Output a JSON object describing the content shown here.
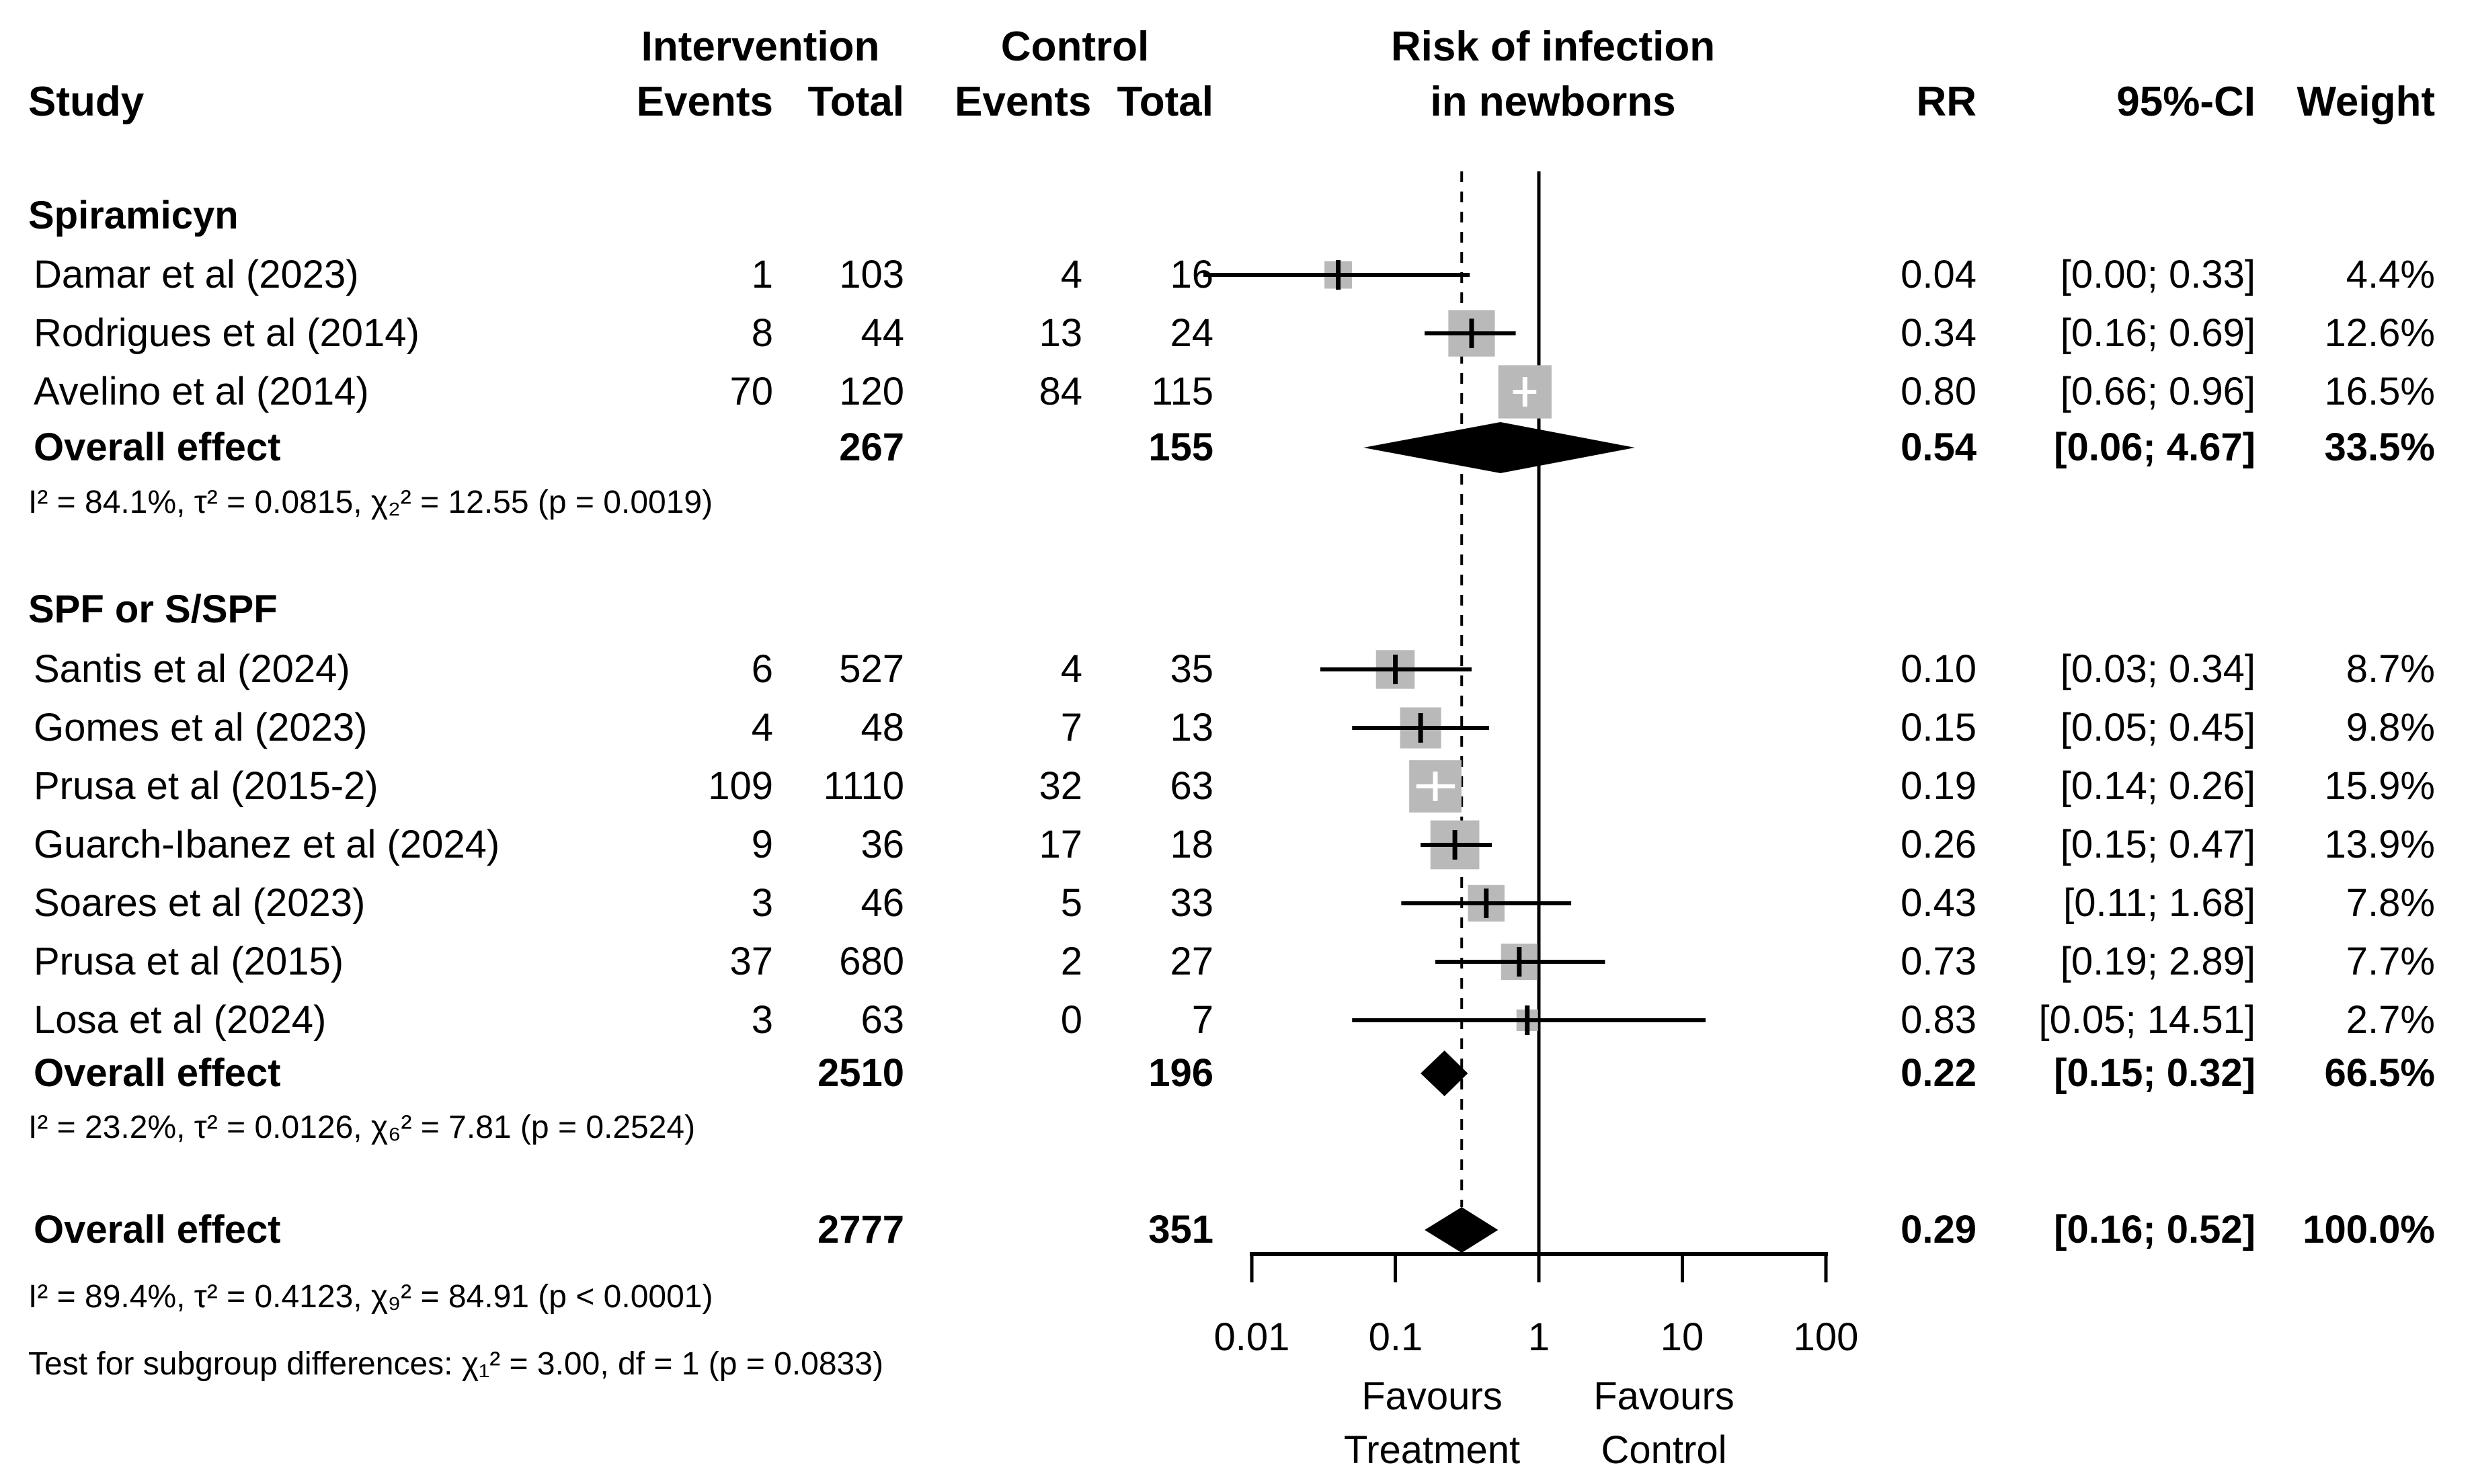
{
  "header": {
    "study": "Study",
    "intervention": "Intervention",
    "control": "Control",
    "events_int": "Events",
    "total_int": "Total",
    "events_ctl": "Events",
    "total_ctl": "Total",
    "plot_title_line1": "Risk of infection",
    "plot_title_line2": "in newborns",
    "rr": "RR",
    "ci": "95%-CI",
    "weight": "Weight"
  },
  "groups": [
    {
      "name": "Spiramicyn",
      "rows": [
        {
          "study": "Damar et al (2023)",
          "ev": "1",
          "tot": "103",
          "cev": "4",
          "ctot": "16",
          "rr": "0.04",
          "ci": "[0.00; 0.33]",
          "wt": "4.4%"
        },
        {
          "study": "Rodrigues et al (2014)",
          "ev": "8",
          "tot": "44",
          "cev": "13",
          "ctot": "24",
          "rr": "0.34",
          "ci": "[0.16; 0.69]",
          "wt": "12.6%"
        },
        {
          "study": "Avelino et al (2014)",
          "ev": "70",
          "tot": "120",
          "cev": "84",
          "ctot": "115",
          "rr": "0.80",
          "ci": "[0.66; 0.96]",
          "wt": "16.5%"
        }
      ],
      "overall": {
        "label": "Overall effect",
        "total": "267",
        "control_total": "155",
        "rr": "0.54",
        "ci": "[0.06; 4.67]",
        "wt": "33.5%"
      },
      "heterogeneity": "I² = 84.1%, τ² = 0.0815, χ₂² = 12.55 (p = 0.0019)"
    },
    {
      "name": "SPF or S/SPF",
      "rows": [
        {
          "study": "Santis et al (2024)",
          "ev": "6",
          "tot": "527",
          "cev": "4",
          "ctot": "35",
          "rr": "0.10",
          "ci": "[0.03; 0.34]",
          "wt": "8.7%"
        },
        {
          "study": "Gomes et al (2023)",
          "ev": "4",
          "tot": "48",
          "cev": "7",
          "ctot": "13",
          "rr": "0.15",
          "ci": "[0.05; 0.45]",
          "wt": "9.8%"
        },
        {
          "study": "Prusa et al (2015-2)",
          "ev": "109",
          "tot": "1110",
          "cev": "32",
          "ctot": "63",
          "rr": "0.19",
          "ci": "[0.14; 0.26]",
          "wt": "15.9%"
        },
        {
          "study": "Guarch-Ibanez et al (2024)",
          "ev": "9",
          "tot": "36",
          "cev": "17",
          "ctot": "18",
          "rr": "0.26",
          "ci": "[0.15; 0.47]",
          "wt": "13.9%"
        },
        {
          "study": "Soares et al (2023)",
          "ev": "3",
          "tot": "46",
          "cev": "5",
          "ctot": "33",
          "rr": "0.43",
          "ci": "[0.11; 1.68]",
          "wt": "7.8%"
        },
        {
          "study": "Prusa et al (2015)",
          "ev": "37",
          "tot": "680",
          "cev": "2",
          "ctot": "27",
          "rr": "0.73",
          "ci": "[0.19; 2.89]",
          "wt": "7.7%"
        },
        {
          "study": "Losa et al (2024)",
          "ev": "3",
          "tot": "63",
          "cev": "0",
          "ctot": "7",
          "rr": "0.83",
          "ci": "[0.05; 14.51]",
          "wt": "2.7%"
        }
      ],
      "overall": {
        "label": "Overall effect",
        "total": "2510",
        "control_total": "196",
        "rr": "0.22",
        "ci": "[0.15; 0.32]",
        "wt": "66.5%"
      },
      "heterogeneity": "I² = 23.2%, τ² = 0.0126, χ₆² = 7.81 (p = 0.2524)"
    }
  ],
  "grand": {
    "label": "Overall effect",
    "total": "2777",
    "control_total": "351",
    "rr": "0.29",
    "ci": "[0.16; 0.52]",
    "wt": "100.0%",
    "heterogeneity": "I² = 89.4%, τ² = 0.4123, χ₉² = 84.91 (p < 0.0001)",
    "subgroup_test": "Test for subgroup differences: χ₁² = 3.00, df = 1 (p = 0.0833)"
  },
  "axis": {
    "ticks": [
      "0.01",
      "0.1",
      "1",
      "10",
      "100"
    ],
    "favours_treatment_1": "Favours",
    "favours_treatment_2": "Treatment",
    "favours_control_1": "Favours",
    "favours_control_2": "Control"
  },
  "chart_data": {
    "type": "forest",
    "title": "Risk of infection in newborns",
    "effect_measure": "RR",
    "x_scale": "log10",
    "x_ticks": [
      0.01,
      0.1,
      1,
      10,
      100
    ],
    "xlim": [
      0.01,
      100
    ],
    "ref_line": 1.0,
    "pooled_line": 0.29,
    "favours": [
      "Favours Treatment",
      "Favours Control"
    ],
    "studies": [
      {
        "name": "Damar et al (2023)",
        "group": "Spiramicyn",
        "events": 1,
        "total": 103,
        "control_events": 4,
        "control_total": 16,
        "rr": 0.04,
        "ci_low": 0.0,
        "ci_high": 0.33,
        "weight_pct": 4.4
      },
      {
        "name": "Rodrigues et al (2014)",
        "group": "Spiramicyn",
        "events": 8,
        "total": 44,
        "control_events": 13,
        "control_total": 24,
        "rr": 0.34,
        "ci_low": 0.16,
        "ci_high": 0.69,
        "weight_pct": 12.6
      },
      {
        "name": "Avelino et al (2014)",
        "group": "Spiramicyn",
        "events": 70,
        "total": 120,
        "control_events": 84,
        "control_total": 115,
        "rr": 0.8,
        "ci_low": 0.66,
        "ci_high": 0.96,
        "weight_pct": 16.5
      },
      {
        "name": "Santis et al (2024)",
        "group": "SPF or S/SPF",
        "events": 6,
        "total": 527,
        "control_events": 4,
        "control_total": 35,
        "rr": 0.1,
        "ci_low": 0.03,
        "ci_high": 0.34,
        "weight_pct": 8.7
      },
      {
        "name": "Gomes et al (2023)",
        "group": "SPF or S/SPF",
        "events": 4,
        "total": 48,
        "control_events": 7,
        "control_total": 13,
        "rr": 0.15,
        "ci_low": 0.05,
        "ci_high": 0.45,
        "weight_pct": 9.8
      },
      {
        "name": "Prusa et al (2015-2)",
        "group": "SPF or S/SPF",
        "events": 109,
        "total": 1110,
        "control_events": 32,
        "control_total": 63,
        "rr": 0.19,
        "ci_low": 0.14,
        "ci_high": 0.26,
        "weight_pct": 15.9
      },
      {
        "name": "Guarch-Ibanez et al (2024)",
        "group": "SPF or S/SPF",
        "events": 9,
        "total": 36,
        "control_events": 17,
        "control_total": 18,
        "rr": 0.26,
        "ci_low": 0.15,
        "ci_high": 0.47,
        "weight_pct": 13.9
      },
      {
        "name": "Soares et al (2023)",
        "group": "SPF or S/SPF",
        "events": 3,
        "total": 46,
        "control_events": 5,
        "control_total": 33,
        "rr": 0.43,
        "ci_low": 0.11,
        "ci_high": 1.68,
        "weight_pct": 7.8
      },
      {
        "name": "Prusa et al (2015)",
        "group": "SPF or S/SPF",
        "events": 37,
        "total": 680,
        "control_events": 2,
        "control_total": 27,
        "rr": 0.73,
        "ci_low": 0.19,
        "ci_high": 2.89,
        "weight_pct": 7.7
      },
      {
        "name": "Losa et al (2024)",
        "group": "SPF or S/SPF",
        "events": 3,
        "total": 63,
        "control_events": 0,
        "control_total": 7,
        "rr": 0.83,
        "ci_low": 0.05,
        "ci_high": 14.51,
        "weight_pct": 2.7
      }
    ],
    "subgroups": [
      {
        "name": "Spiramicyn",
        "rr": 0.54,
        "ci_low": 0.06,
        "ci_high": 4.67,
        "weight_pct": 33.5,
        "total": 267,
        "control_total": 155,
        "i2_pct": 84.1,
        "tau2": 0.0815,
        "chi2": 12.55,
        "df": 2,
        "p": "0.0019"
      },
      {
        "name": "SPF or S/SPF",
        "rr": 0.22,
        "ci_low": 0.15,
        "ci_high": 0.32,
        "weight_pct": 66.5,
        "total": 2510,
        "control_total": 196,
        "i2_pct": 23.2,
        "tau2": 0.0126,
        "chi2": 7.81,
        "df": 6,
        "p": "0.2524"
      }
    ],
    "overall": {
      "rr": 0.29,
      "ci_low": 0.16,
      "ci_high": 0.52,
      "weight_pct": 100.0,
      "total": 2777,
      "control_total": 351,
      "i2_pct": 89.4,
      "tau2": 0.4123,
      "chi2": 84.91,
      "df": 9,
      "p": "< 0.0001"
    },
    "subgroup_test": {
      "chi2": 3.0,
      "df": 1,
      "p": 0.0833
    },
    "square_color": "#b9b9b9",
    "diamond_color": "#000000"
  }
}
